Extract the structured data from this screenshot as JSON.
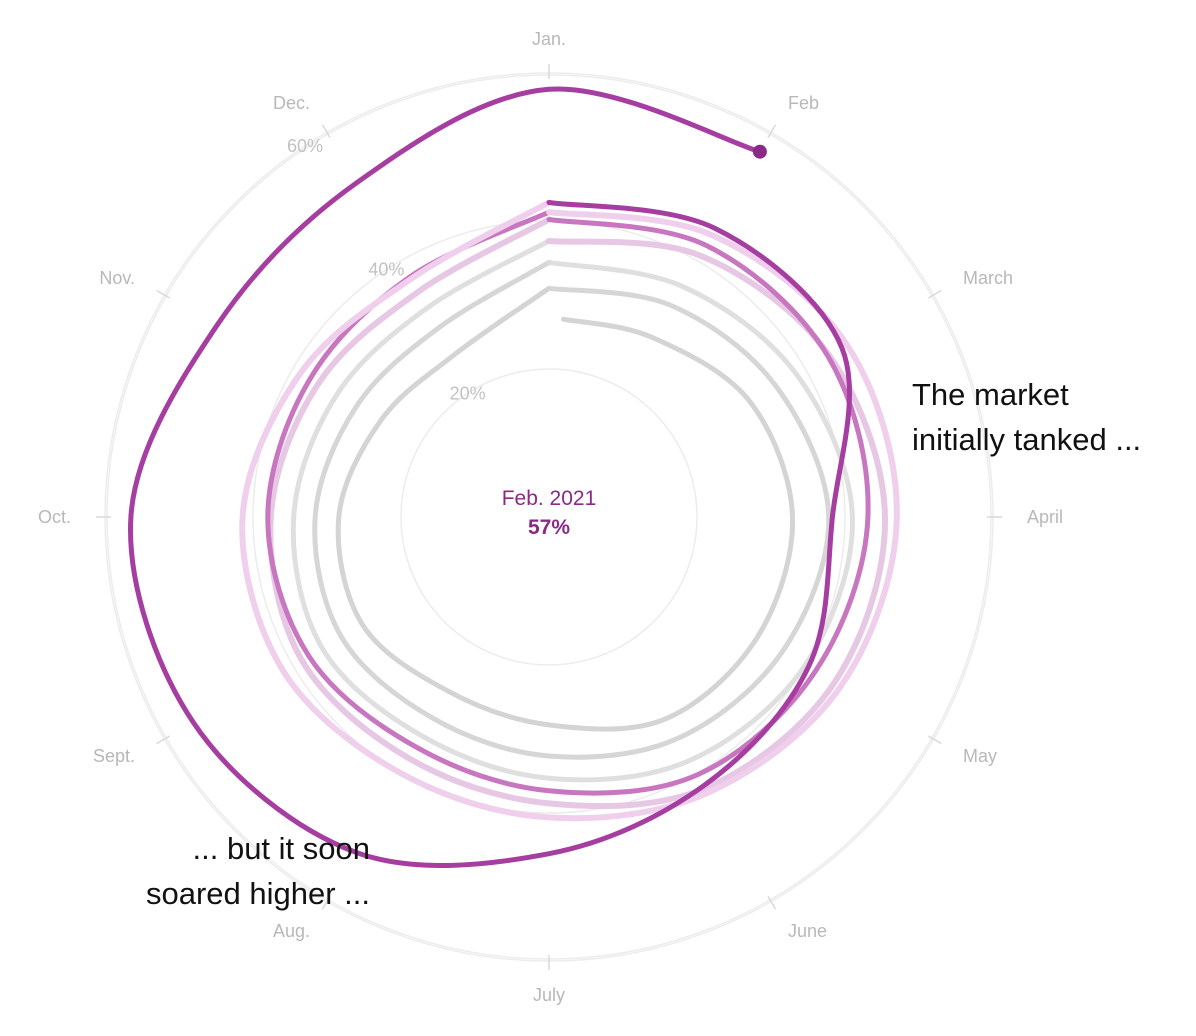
{
  "chart_data": {
    "type": "line",
    "polar": true,
    "angular_axis": [
      "Jan.",
      "Feb",
      "March",
      "April",
      "May",
      "June",
      "July",
      "Aug.",
      "Sept.",
      "Oct.",
      "Nov.",
      "Dec."
    ],
    "radial_ticks": [
      {
        "value": 20,
        "label": "20%"
      },
      {
        "value": 40,
        "label": "40%"
      },
      {
        "value": 60,
        "label": "60%"
      }
    ],
    "radial_range": [
      0,
      63
    ],
    "center_label": {
      "date": "Feb. 2021",
      "value": "57%"
    },
    "annotations": [
      {
        "lines": [
          "The market",
          "initially tanked ..."
        ]
      },
      {
        "lines": [
          "... but it soon",
          "soared higher ..."
        ]
      }
    ],
    "series": [
      {
        "color": "#d4d4d4",
        "opacity": 1.0,
        "width": 5,
        "points": [
          [
            0.14,
            26.8
          ],
          [
            1.0,
            28.0
          ],
          [
            2.0,
            31.3
          ],
          [
            3.0,
            32.9
          ],
          [
            4.0,
            32.5
          ],
          [
            5.0,
            31.5
          ],
          [
            6.0,
            28.1
          ],
          [
            7.0,
            27.2
          ],
          [
            8.0,
            29.1
          ],
          [
            9.0,
            28.4
          ],
          [
            10.0,
            26.2
          ],
          [
            11.0,
            25.4
          ],
          [
            12.0,
            30.9
          ]
        ]
      },
      {
        "color": "#d4d4d4",
        "opacity": 0.95,
        "width": 5,
        "points": [
          [
            0.0,
            30.9
          ],
          [
            1.0,
            33.0
          ],
          [
            2.0,
            35.4
          ],
          [
            3.0,
            37.8
          ],
          [
            4.0,
            36.4
          ],
          [
            5.0,
            34.6
          ],
          [
            6.0,
            32.3
          ],
          [
            7.0,
            31.4
          ],
          [
            8.0,
            32.4
          ],
          [
            9.0,
            31.6
          ],
          [
            10.0,
            30.0
          ],
          [
            11.0,
            29.6
          ],
          [
            12.0,
            34.4
          ]
        ]
      },
      {
        "color": "#dcdcdc",
        "opacity": 0.9,
        "width": 5,
        "points": [
          [
            0.0,
            34.4
          ],
          [
            1.0,
            36.0
          ],
          [
            2.0,
            38.6
          ],
          [
            3.0,
            41.0
          ],
          [
            4.0,
            40.0
          ],
          [
            5.0,
            38.0
          ],
          [
            6.0,
            35.3
          ],
          [
            7.0,
            34.2
          ],
          [
            8.0,
            35.4
          ],
          [
            9.0,
            34.5
          ],
          [
            10.0,
            33.1
          ],
          [
            11.0,
            32.7
          ],
          [
            12.0,
            37.3
          ]
        ]
      },
      {
        "color": "#e7c8e4",
        "opacity": 1.0,
        "width": 6,
        "points": [
          [
            0.0,
            37.3
          ],
          [
            1.0,
            40.8
          ],
          [
            2.0,
            43.7
          ],
          [
            3.0,
            45.4
          ],
          [
            4.0,
            44.6
          ],
          [
            5.0,
            42.3
          ],
          [
            6.0,
            38.7
          ],
          [
            7.0,
            37.7
          ],
          [
            8.0,
            38.6
          ],
          [
            9.0,
            37.6
          ],
          [
            10.0,
            36.0
          ],
          [
            11.0,
            35.2
          ],
          [
            12.0,
            40.2
          ]
        ]
      },
      {
        "color": "#c776bf",
        "opacity": 1.0,
        "width": 5,
        "points": [
          [
            0.0,
            40.2
          ],
          [
            1.0,
            42.4
          ],
          [
            2.0,
            43.5
          ],
          [
            3.0,
            43.1
          ],
          [
            4.0,
            41.6
          ],
          [
            5.0,
            40.2
          ],
          [
            6.0,
            37.0
          ],
          [
            7.0,
            35.9
          ],
          [
            8.0,
            37.5
          ],
          [
            9.0,
            38.0
          ],
          [
            10.0,
            37.3
          ],
          [
            11.0,
            37.5
          ],
          [
            12.0,
            41.2
          ]
        ]
      },
      {
        "color": "#efcfec",
        "opacity": 1.0,
        "width": 6,
        "points": [
          [
            0.0,
            41.2
          ],
          [
            1.0,
            44.0
          ],
          [
            2.0,
            46.5
          ],
          [
            3.0,
            47.0
          ],
          [
            4.0,
            45.6
          ],
          [
            5.0,
            43.0
          ],
          [
            6.0,
            40.6
          ],
          [
            7.0,
            40.0
          ],
          [
            8.0,
            41.5
          ],
          [
            9.0,
            41.4
          ],
          [
            10.0,
            38.8
          ],
          [
            11.0,
            37.2
          ],
          [
            12.0,
            42.5
          ]
        ]
      },
      {
        "color": "#a63da0",
        "opacity": 1.0,
        "width": 5,
        "points": [
          [
            0.0,
            42.5
          ],
          [
            1.0,
            45.0
          ],
          [
            2.0,
            45.7
          ],
          [
            3.0,
            38.3
          ],
          [
            4.0,
            40.5
          ],
          [
            5.0,
            41.9
          ],
          [
            6.0,
            45.5
          ],
          [
            7.0,
            52.3
          ],
          [
            8.0,
            55.5
          ],
          [
            9.0,
            56.5
          ],
          [
            10.0,
            51.8
          ],
          [
            11.0,
            52.1
          ],
          [
            12.0,
            57.8
          ],
          [
            13.0,
            57.0
          ]
        ]
      }
    ]
  }
}
